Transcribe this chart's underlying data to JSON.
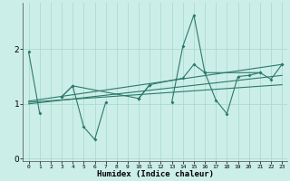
{
  "title": "",
  "xlabel": "Humidex (Indice chaleur)",
  "ylabel": "",
  "background_color": "#cceee8",
  "grid_color": "#aaddcc",
  "line_color": "#2d7a6a",
  "x_values": [
    0,
    1,
    2,
    3,
    4,
    5,
    6,
    7,
    8,
    9,
    10,
    11,
    12,
    13,
    14,
    15,
    16,
    17,
    18,
    19,
    20,
    21,
    22,
    23
  ],
  "series_main": [
    1.95,
    0.83,
    null,
    1.13,
    1.33,
    0.58,
    0.35,
    1.03,
    null,
    null,
    1.1,
    1.35,
    null,
    1.03,
    2.05,
    2.62,
    1.57,
    1.07,
    0.82,
    1.5,
    1.52,
    1.57,
    null,
    1.72
  ],
  "series2_x": [
    3,
    4,
    10,
    11,
    14,
    15,
    16,
    21,
    22,
    23
  ],
  "series2_y": [
    1.13,
    1.33,
    1.1,
    1.35,
    1.47,
    1.72,
    1.57,
    1.57,
    1.45,
    1.72
  ],
  "trend1_x": [
    0,
    23
  ],
  "trend1_y": [
    1.05,
    1.72
  ],
  "trend2_x": [
    0,
    23
  ],
  "trend2_y": [
    1.03,
    1.35
  ],
  "trend3_x": [
    0,
    23
  ],
  "trend3_y": [
    1.0,
    1.52
  ],
  "ylim": [
    -0.05,
    2.85
  ],
  "yticks": [
    0,
    1,
    2
  ],
  "xlim": [
    -0.5,
    23.5
  ],
  "figsize": [
    3.2,
    2.0
  ],
  "dpi": 100
}
